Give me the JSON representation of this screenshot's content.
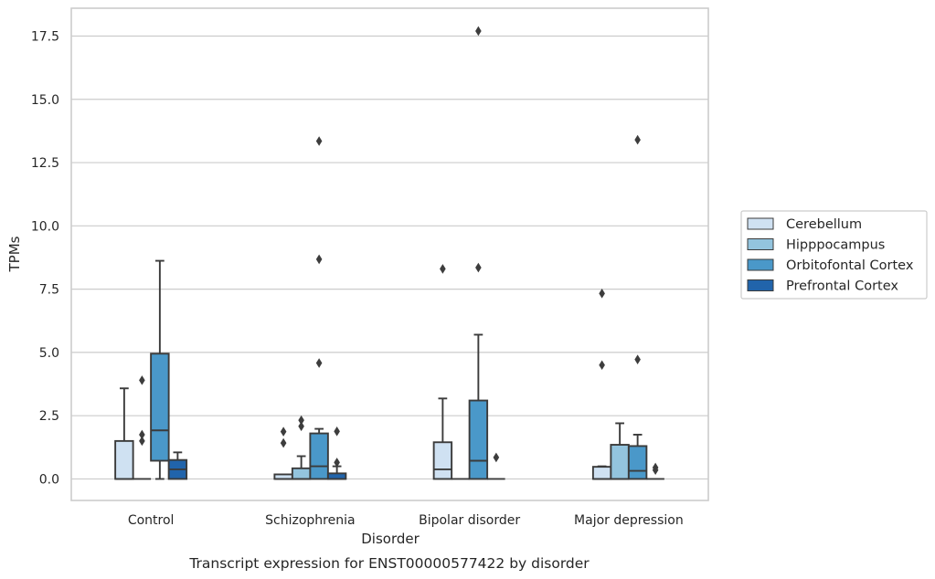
{
  "caption": "Transcript expression for ENST00000577422 by disorder",
  "colors": {
    "Cerebellum": "#cfe1f2",
    "Hipppocampus": "#93c4de",
    "Orbitofontal Cortex": "#4a98c9",
    "Prefrontal Cortex": "#2164ab",
    "grid": "#cccccc",
    "frame": "#cccccc",
    "outline": "#3b3b3b"
  },
  "chart_data": {
    "type": "box",
    "xlabel": "Disorder",
    "ylabel": "TPMs",
    "ylim": [
      -0.85,
      18.6
    ],
    "yticks": [
      0.0,
      2.5,
      5.0,
      7.5,
      10.0,
      12.5,
      15.0,
      17.5
    ],
    "ytick_labels": [
      "0.0",
      "2.5",
      "5.0",
      "7.5",
      "10.0",
      "12.5",
      "15.0",
      "17.5"
    ],
    "grid": true,
    "legend_position": "right",
    "categories": [
      "Control",
      "Schizophrenia",
      "Bipolar disorder",
      "Major depression"
    ],
    "series": [
      {
        "name": "Cerebellum",
        "boxes": [
          {
            "whislo": 0.0,
            "q1": 0.0,
            "med": 0.0,
            "q3": 1.5,
            "whishi": 3.58,
            "fliers": []
          },
          {
            "whislo": 0.0,
            "q1": 0.0,
            "med": 0.0,
            "q3": 0.18,
            "whishi": 0.18,
            "fliers": [
              1.87,
              1.42
            ]
          },
          {
            "whislo": 0.0,
            "q1": 0.0,
            "med": 0.38,
            "q3": 1.45,
            "whishi": 3.18,
            "fliers": [
              8.3
            ]
          },
          {
            "whislo": 0.0,
            "q1": 0.0,
            "med": 0.0,
            "q3": 0.48,
            "whishi": 0.5,
            "fliers": [
              7.33,
              4.5
            ]
          }
        ]
      },
      {
        "name": "Hipppocampus",
        "boxes": [
          {
            "whislo": 0.0,
            "q1": 0.0,
            "med": 0.0,
            "q3": 0.0,
            "whishi": 0.0,
            "fliers": [
              3.9,
              1.75,
              1.5
            ]
          },
          {
            "whislo": 0.0,
            "q1": 0.0,
            "med": 0.0,
            "q3": 0.42,
            "whishi": 0.9,
            "fliers": [
              2.32,
              2.08
            ]
          },
          {
            "whislo": 0.0,
            "q1": 0.0,
            "med": 0.0,
            "q3": 0.0,
            "whishi": 0.0,
            "fliers": []
          },
          {
            "whislo": 0.0,
            "q1": 0.0,
            "med": 0.0,
            "q3": 1.35,
            "whishi": 2.2,
            "fliers": []
          }
        ]
      },
      {
        "name": "Orbitofontal Cortex",
        "boxes": [
          {
            "whislo": 0.0,
            "q1": 0.72,
            "med": 1.92,
            "q3": 4.95,
            "whishi": 8.62,
            "fliers": []
          },
          {
            "whislo": 0.0,
            "q1": 0.0,
            "med": 0.5,
            "q3": 1.8,
            "whishi": 1.98,
            "fliers": [
              13.35,
              8.68,
              4.58
            ]
          },
          {
            "whislo": 0.0,
            "q1": 0.0,
            "med": 0.72,
            "q3": 3.1,
            "whishi": 5.7,
            "fliers": [
              17.7,
              8.35
            ]
          },
          {
            "whislo": 0.0,
            "q1": 0.0,
            "med": 0.32,
            "q3": 1.3,
            "whishi": 1.75,
            "fliers": [
              13.4,
              4.72
            ]
          }
        ]
      },
      {
        "name": "Prefrontal Cortex",
        "boxes": [
          {
            "whislo": 0.0,
            "q1": 0.0,
            "med": 0.38,
            "q3": 0.75,
            "whishi": 1.05,
            "fliers": []
          },
          {
            "whislo": 0.0,
            "q1": 0.0,
            "med": 0.0,
            "q3": 0.22,
            "whishi": 0.5,
            "fliers": [
              1.88,
              0.65
            ]
          },
          {
            "whislo": 0.0,
            "q1": 0.0,
            "med": 0.0,
            "q3": 0.0,
            "whishi": 0.0,
            "fliers": [
              0.85
            ]
          },
          {
            "whislo": 0.0,
            "q1": 0.0,
            "med": 0.0,
            "q3": 0.0,
            "whishi": 0.0,
            "fliers": [
              0.45,
              0.35
            ]
          }
        ]
      }
    ]
  }
}
